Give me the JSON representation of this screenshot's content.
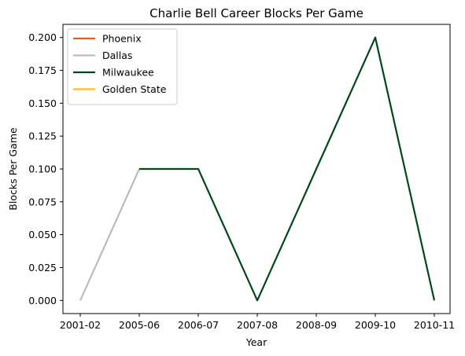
{
  "chart_data": {
    "type": "line",
    "title": "Charlie Bell  Career Blocks Per Game",
    "xlabel": "Year",
    "ylabel": "Blocks Per Game",
    "categories": [
      "2001-02",
      "2005-06",
      "2006-07",
      "2007-08",
      "2008-09",
      "2009-10",
      "2010-11"
    ],
    "ylim": [
      -0.01,
      0.21
    ],
    "yticks": [
      "0.000",
      "0.025",
      "0.050",
      "0.075",
      "0.100",
      "0.125",
      "0.150",
      "0.175",
      "0.200"
    ],
    "ytick_values": [
      0,
      0.025,
      0.05,
      0.075,
      0.1,
      0.125,
      0.15,
      0.175,
      0.2
    ],
    "legend_position": "upper-left",
    "series": [
      {
        "name": "Phoenix",
        "color": "#E56020",
        "points": [
          [
            "2001-02",
            0.0
          ]
        ]
      },
      {
        "name": "Dallas",
        "color": "#BBBBBB",
        "points": [
          [
            "2001-02",
            0.0
          ],
          [
            "2005-06",
            0.1
          ]
        ]
      },
      {
        "name": "Milwaukee",
        "color": "#00471B",
        "points": [
          [
            "2005-06",
            0.1
          ],
          [
            "2006-07",
            0.1
          ],
          [
            "2007-08",
            0.0
          ],
          [
            "2008-09",
            0.1
          ],
          [
            "2009-10",
            0.2
          ],
          [
            "2010-11",
            0.0
          ]
        ]
      },
      {
        "name": "Golden State",
        "color": "#FDB927",
        "points": []
      }
    ]
  }
}
